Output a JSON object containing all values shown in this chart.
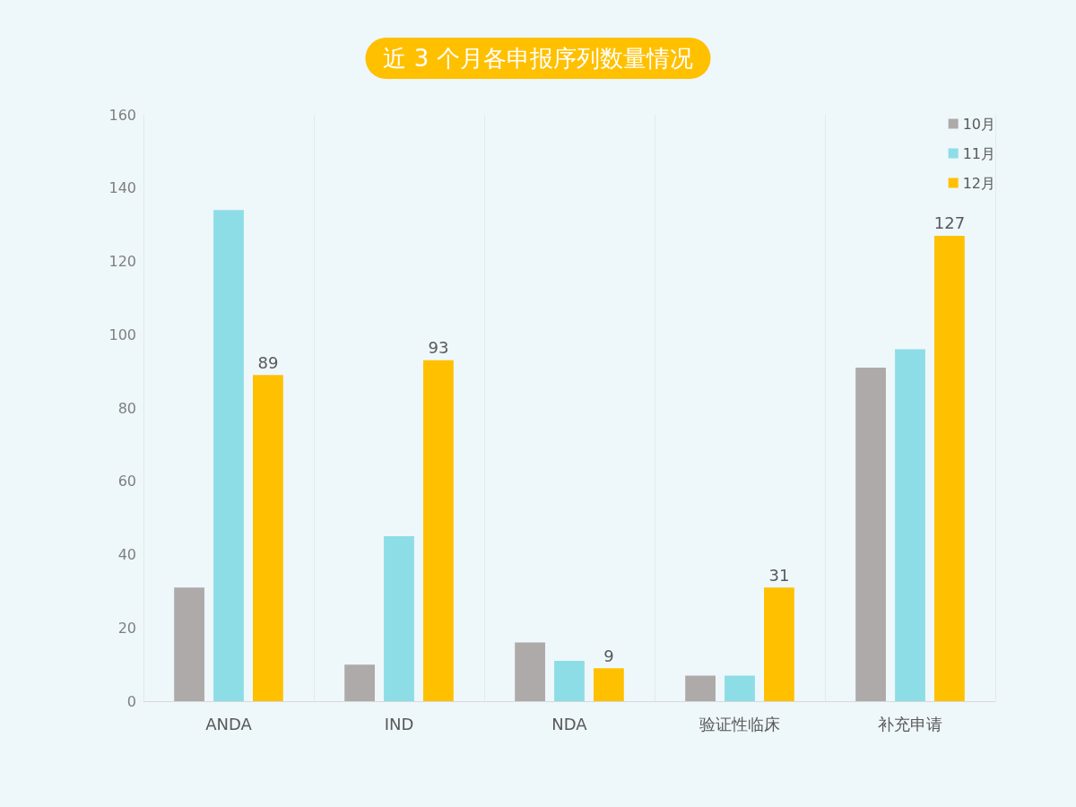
{
  "chart_data": {
    "type": "bar",
    "title": "近 3 个月各申报序列数量情况",
    "categories": [
      "ANDA",
      "IND",
      "NDA",
      "验证性临床",
      "补充申请"
    ],
    "series": [
      {
        "name": "10月",
        "color": "#aeaaaa",
        "values": [
          31,
          10,
          16,
          7,
          91
        ]
      },
      {
        "name": "11月",
        "color": "#8ddde6",
        "values": [
          134,
          45,
          11,
          7,
          96
        ]
      },
      {
        "name": "12月",
        "color": "#ffc000",
        "values": [
          89,
          93,
          9,
          31,
          127
        ],
        "value_labels": [
          "89",
          "93",
          "9",
          "31",
          "127"
        ]
      }
    ],
    "ylim": [
      0,
      160
    ],
    "yticks": [
      0,
      20,
      40,
      60,
      80,
      100,
      120,
      140,
      160
    ],
    "grid": "x",
    "legend": "top right"
  }
}
